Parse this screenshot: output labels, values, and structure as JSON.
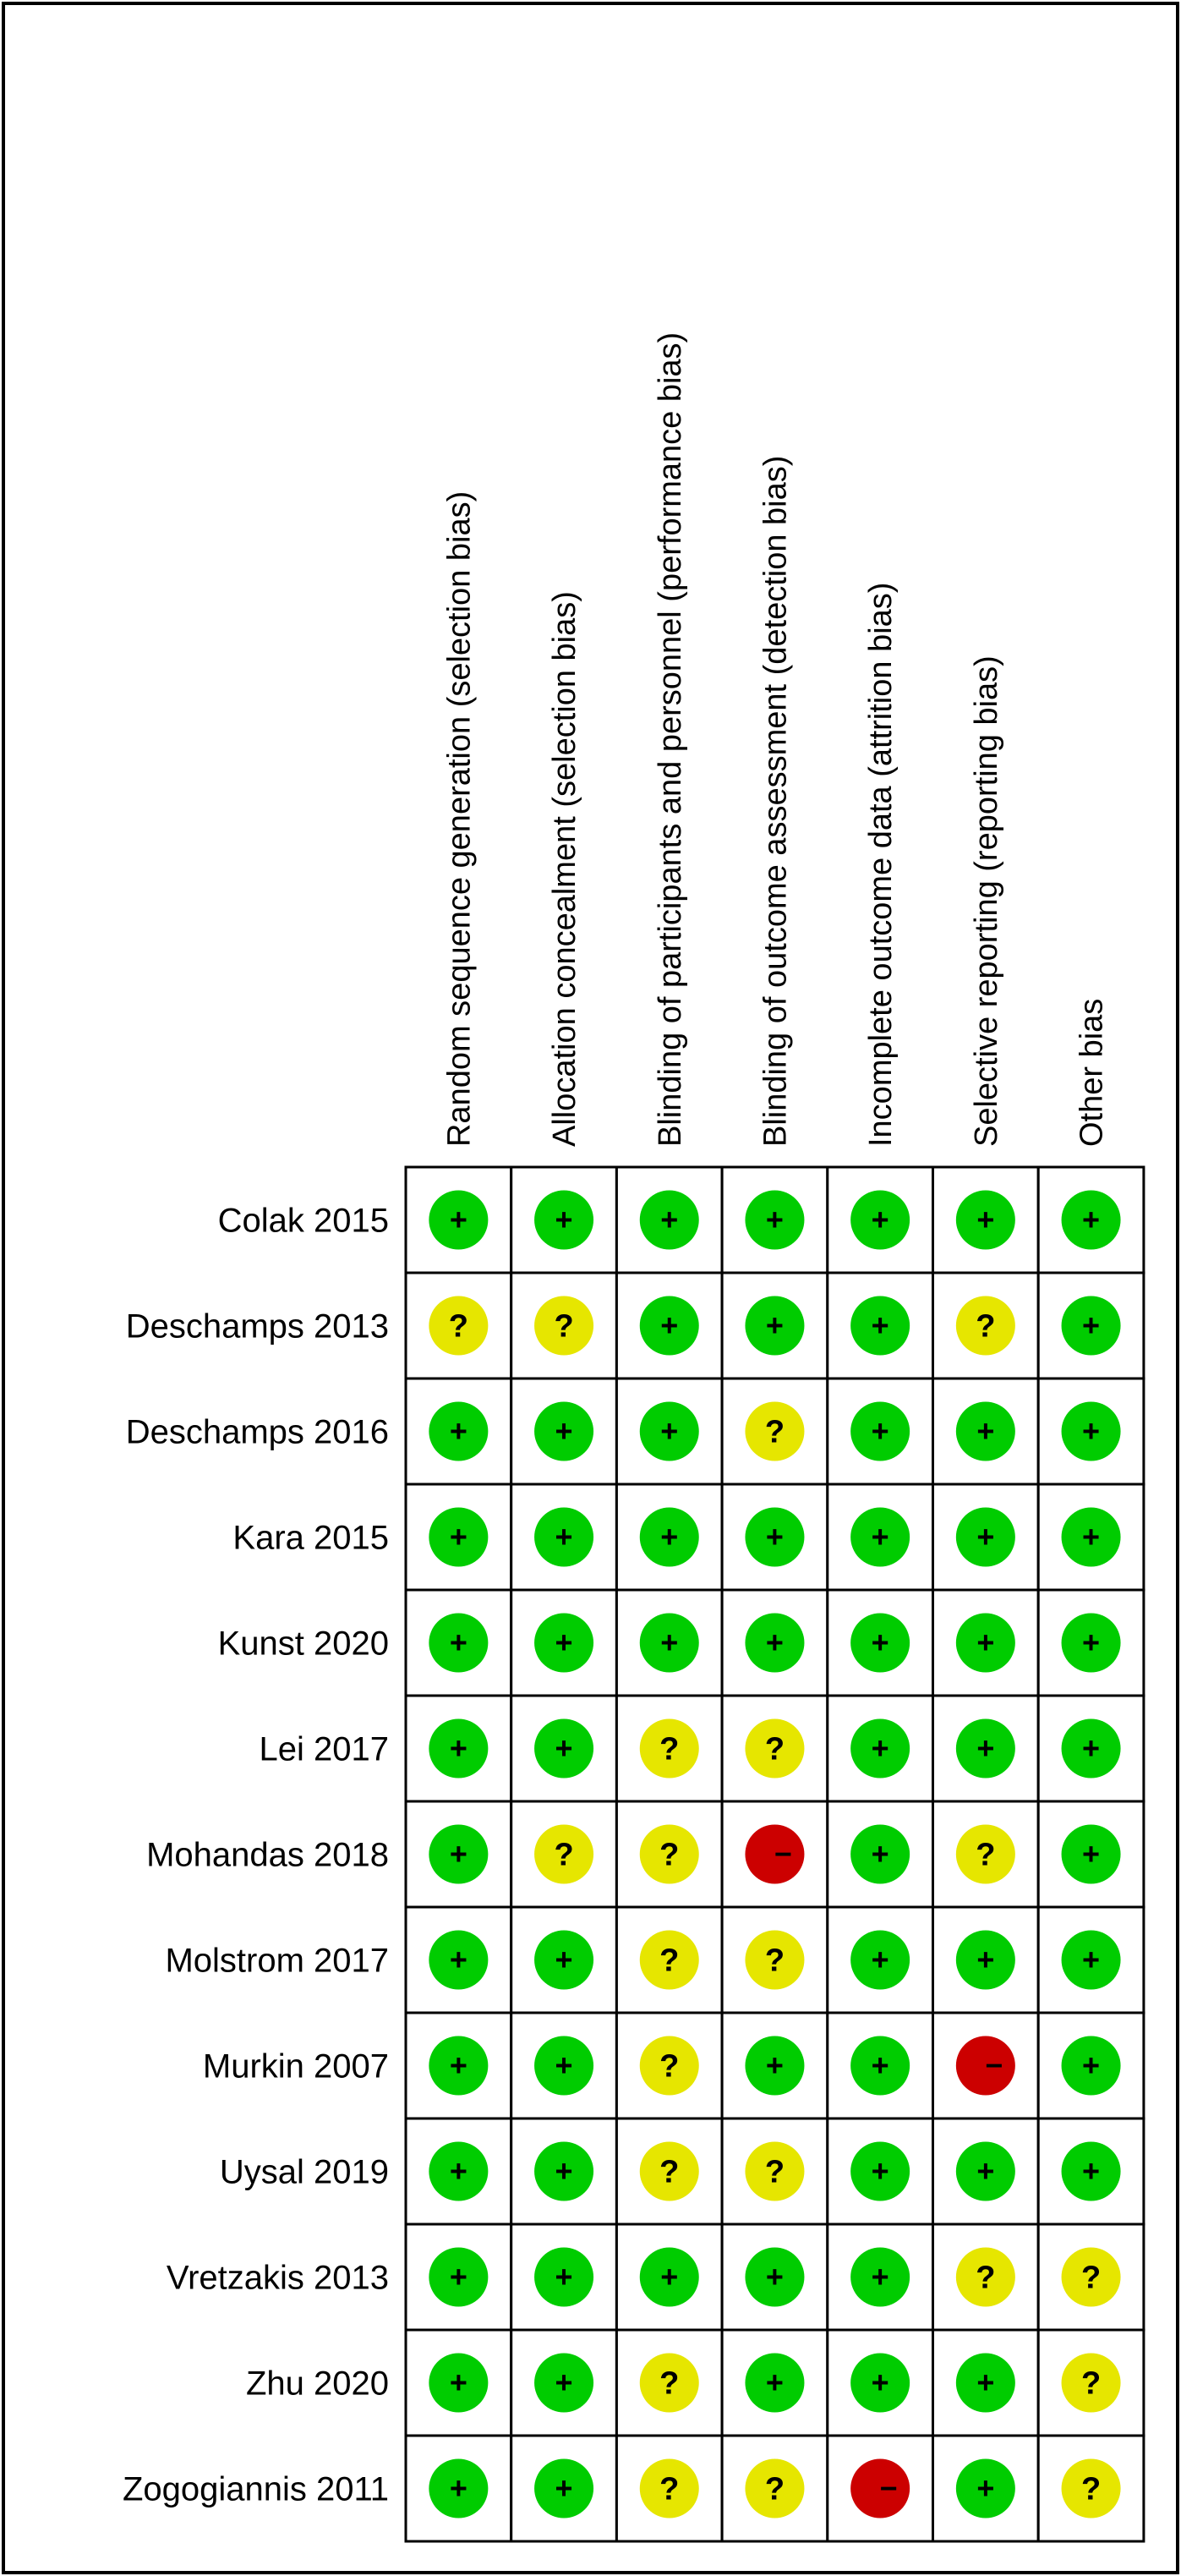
{
  "chart_data": {
    "type": "table",
    "domains": [
      "Random sequence generation (selection bias)",
      "Allocation concealment (selection bias)",
      "Blinding of participants and personnel (performance bias)",
      "Blinding of outcome assessment (detection bias)",
      "Incomplete outcome data (attrition bias)",
      "Selective reporting (reporting bias)",
      "Other bias"
    ],
    "studies": [
      {
        "name": "Colak 2015",
        "ratings": [
          "low",
          "low",
          "low",
          "low",
          "low",
          "low",
          "low"
        ]
      },
      {
        "name": "Deschamps 2013",
        "ratings": [
          "unclear",
          "unclear",
          "low",
          "low",
          "low",
          "unclear",
          "low"
        ]
      },
      {
        "name": "Deschamps 2016",
        "ratings": [
          "low",
          "low",
          "low",
          "unclear",
          "low",
          "low",
          "low"
        ]
      },
      {
        "name": "Kara 2015",
        "ratings": [
          "low",
          "low",
          "low",
          "low",
          "low",
          "low",
          "low"
        ]
      },
      {
        "name": "Kunst 2020",
        "ratings": [
          "low",
          "low",
          "low",
          "low",
          "low",
          "low",
          "low"
        ]
      },
      {
        "name": "Lei 2017",
        "ratings": [
          "low",
          "low",
          "unclear",
          "unclear",
          "low",
          "low",
          "low"
        ]
      },
      {
        "name": "Mohandas 2018",
        "ratings": [
          "low",
          "unclear",
          "unclear",
          "high",
          "low",
          "unclear",
          "low"
        ]
      },
      {
        "name": "Molstrom 2017",
        "ratings": [
          "low",
          "low",
          "unclear",
          "unclear",
          "low",
          "low",
          "low"
        ]
      },
      {
        "name": "Murkin 2007",
        "ratings": [
          "low",
          "low",
          "unclear",
          "low",
          "low",
          "high",
          "low"
        ]
      },
      {
        "name": "Uysal 2019",
        "ratings": [
          "low",
          "low",
          "unclear",
          "unclear",
          "low",
          "low",
          "low"
        ]
      },
      {
        "name": "Vretzakis 2013",
        "ratings": [
          "low",
          "low",
          "low",
          "low",
          "low",
          "unclear",
          "unclear"
        ]
      },
      {
        "name": "Zhu 2020",
        "ratings": [
          "low",
          "low",
          "unclear",
          "low",
          "low",
          "low",
          "unclear"
        ]
      },
      {
        "name": "Zogogiannis 2011",
        "ratings": [
          "low",
          "low",
          "unclear",
          "unclear",
          "high",
          "low",
          "unclear"
        ]
      }
    ],
    "judgements": {
      "low": {
        "symbol": "+",
        "color": "#00cc00"
      },
      "unclear": {
        "symbol": "?",
        "color": "#e6e600"
      },
      "high": {
        "symbol": "−",
        "color": "#cc0000"
      }
    }
  }
}
